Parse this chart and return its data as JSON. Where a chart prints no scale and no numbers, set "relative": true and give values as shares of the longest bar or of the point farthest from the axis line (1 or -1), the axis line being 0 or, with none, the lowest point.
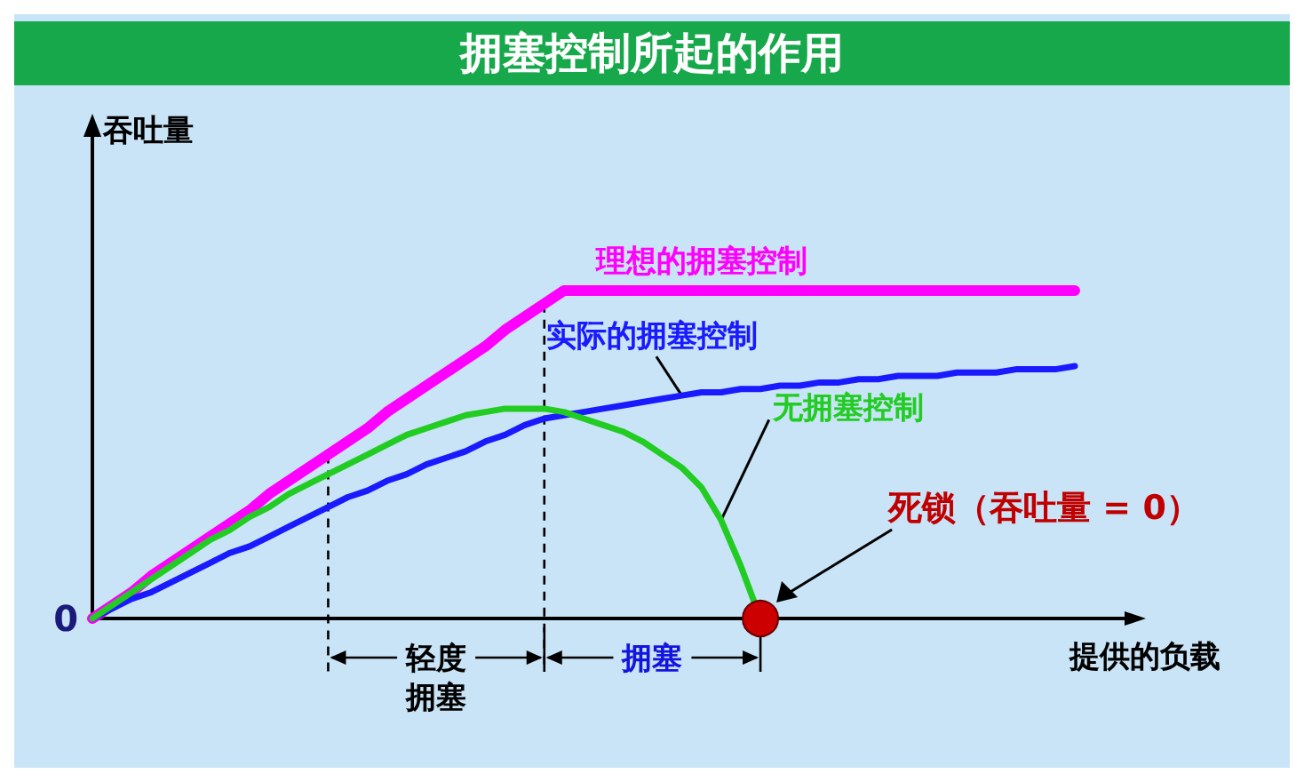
{
  "chart_data": {
    "type": "line",
    "title": "拥塞控制所起的作用",
    "xlabel": "提供的负载",
    "ylabel": "吞吐量",
    "relative": true,
    "grid": false,
    "legend": false,
    "marker": "none",
    "line_style": "solid",
    "categories": [
      null,
      null,
      null,
      null,
      null,
      null,
      null,
      null,
      null,
      null,
      null,
      null,
      null,
      null,
      null,
      null,
      null,
      null,
      null,
      null,
      null,
      null,
      null,
      null,
      null,
      null,
      null,
      null,
      null,
      null,
      null,
      null,
      null,
      null,
      null,
      null,
      null,
      null,
      null,
      null,
      null,
      null,
      null,
      null,
      null,
      null,
      null,
      null,
      null,
      null,
      null
    ],
    "series": [
      {
        "name": "理想的拥塞控制",
        "color": "#ff00ff",
        "values": [
          0,
          0.04,
          0.08,
          0.13,
          0.17,
          0.21,
          0.25,
          0.29,
          0.33,
          0.38,
          0.42,
          0.46,
          0.5,
          0.54,
          0.58,
          0.63,
          0.67,
          0.71,
          0.75,
          0.79,
          0.83,
          0.88,
          0.92,
          0.96,
          1,
          1,
          1,
          1,
          1,
          1,
          1,
          1,
          1,
          1,
          1,
          1,
          1,
          1,
          1,
          1,
          1,
          1,
          1,
          1,
          1,
          1,
          1,
          1,
          1,
          1,
          1
        ]
      },
      {
        "name": "实际的拥塞控制",
        "color": "#1a1aff",
        "values": [
          0,
          0.03,
          0.06,
          0.08,
          0.11,
          0.14,
          0.17,
          0.2,
          0.22,
          0.25,
          0.28,
          0.31,
          0.34,
          0.37,
          0.39,
          0.42,
          0.44,
          0.47,
          0.49,
          0.51,
          0.54,
          0.56,
          0.59,
          0.61,
          0.62,
          0.63,
          0.64,
          0.65,
          0.66,
          0.67,
          0.68,
          0.69,
          0.69,
          0.7,
          0.7,
          0.71,
          0.71,
          0.72,
          0.72,
          0.73,
          0.73,
          0.74,
          0.74,
          0.74,
          0.75,
          0.75,
          0.75,
          0.76,
          0.76,
          0.76,
          0.77
        ]
      },
      {
        "name": "无拥塞控制",
        "color": "#22cc22",
        "values": [
          0,
          0.04,
          0.08,
          0.12,
          0.16,
          0.2,
          0.24,
          0.27,
          0.31,
          0.34,
          0.38,
          0.41,
          0.44,
          0.47,
          0.5,
          0.53,
          0.56,
          0.58,
          0.6,
          0.62,
          0.63,
          0.64,
          0.64,
          0.64,
          0.63,
          0.61,
          0.59,
          0.57,
          0.54,
          0.5,
          0.46,
          0.4,
          0.3,
          0.16,
          0,
          null,
          null,
          null,
          null,
          null,
          null,
          null,
          null,
          null,
          null,
          null,
          null,
          null,
          null,
          null,
          null
        ]
      }
    ],
    "annotations": [
      "0",
      "死锁（吞吐量 = 0）",
      "轻度拥塞",
      "拥塞"
    ]
  }
}
